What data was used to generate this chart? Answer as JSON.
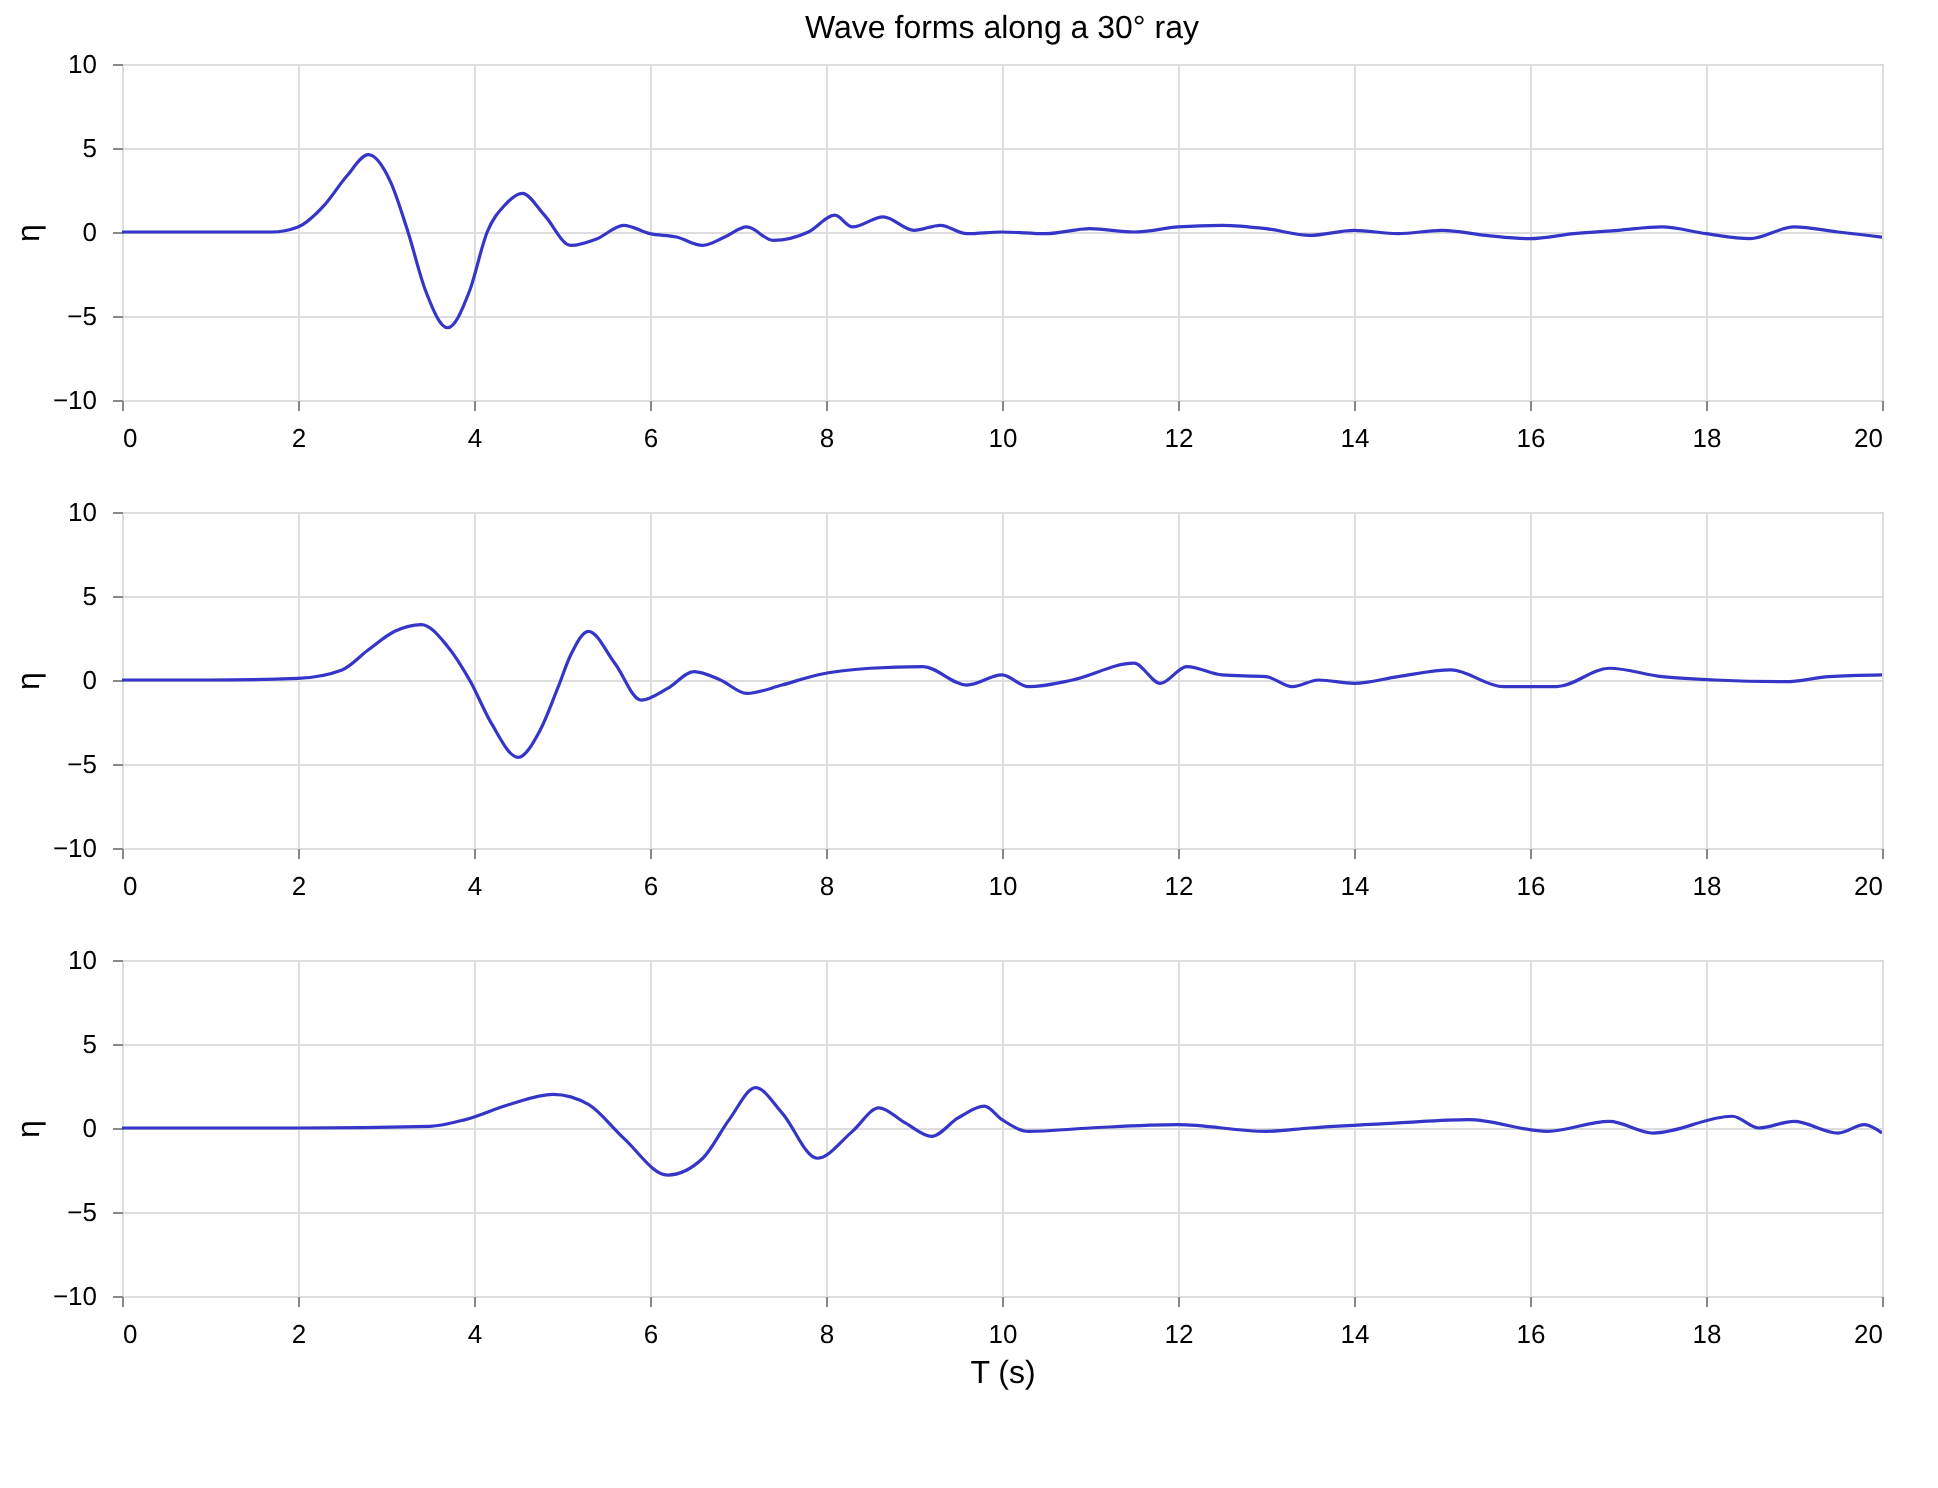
{
  "chart_data": [
    {
      "type": "line",
      "title": "Wave forms along a 30° ray",
      "ylabel": "η",
      "xlim": [
        0,
        20
      ],
      "xticks": [
        0,
        2,
        4,
        6,
        8,
        10,
        12,
        14,
        16,
        18,
        20
      ],
      "ylim": [
        -10,
        10
      ],
      "yticks": [
        -10,
        -5,
        0,
        5,
        10
      ],
      "grid": true,
      "series": [
        {
          "color": "#3535c8",
          "x": [
            0,
            1,
            1.7,
            2.0,
            2.3,
            2.55,
            2.8,
            3.05,
            3.25,
            3.45,
            3.7,
            3.95,
            4.15,
            4.35,
            4.55,
            4.8,
            5.1,
            5.4,
            5.7,
            6.0,
            6.3,
            6.6,
            6.85,
            7.1,
            7.4,
            7.8,
            8.1,
            8.3,
            8.65,
            9.0,
            9.3,
            9.6,
            10,
            10.5,
            11,
            11.5,
            12,
            12.5,
            13,
            13.5,
            14,
            14.5,
            15,
            15.5,
            16,
            16.5,
            17,
            17.5,
            18,
            18.5,
            19,
            19.5,
            20
          ],
          "values": [
            0,
            0,
            0,
            0.3,
            1.6,
            3.3,
            4.6,
            3.0,
            0,
            -3.5,
            -5.7,
            -3.5,
            0,
            1.6,
            2.3,
            1.0,
            -0.8,
            -0.4,
            0.4,
            -0.1,
            -0.3,
            -0.8,
            -0.3,
            0.3,
            -0.5,
            0,
            1.0,
            0.3,
            0.9,
            0.1,
            0.4,
            -0.1,
            0,
            -0.1,
            0.2,
            0,
            0.3,
            0.4,
            0.2,
            -0.2,
            0.1,
            -0.1,
            0.1,
            -0.2,
            -0.4,
            -0.1,
            0.1,
            0.3,
            -0.1,
            -0.4,
            0.3,
            0,
            -0.3
          ]
        }
      ]
    },
    {
      "type": "line",
      "ylabel": "η",
      "xlim": [
        0,
        20
      ],
      "xticks": [
        0,
        2,
        4,
        6,
        8,
        10,
        12,
        14,
        16,
        18,
        20
      ],
      "ylim": [
        -10,
        10
      ],
      "yticks": [
        -10,
        -5,
        0,
        5,
        10
      ],
      "grid": true,
      "series": [
        {
          "color": "#3535c8",
          "x": [
            0,
            1,
            2.0,
            2.5,
            2.8,
            3.1,
            3.4,
            3.7,
            3.95,
            4.2,
            4.5,
            4.75,
            4.95,
            5.1,
            5.3,
            5.6,
            5.9,
            6.2,
            6.5,
            6.8,
            7.1,
            7.5,
            7.9,
            8.5,
            9.1,
            9.6,
            10,
            10.3,
            10.8,
            11.5,
            11.8,
            12.1,
            12.5,
            13,
            13.3,
            13.6,
            14.0,
            14.5,
            15.1,
            15.7,
            16.3,
            16.9,
            17.5,
            18.1,
            18.9,
            19.4,
            20
          ],
          "values": [
            0,
            0,
            0.1,
            0.6,
            1.8,
            2.9,
            3.3,
            2.0,
            0,
            -2.6,
            -4.6,
            -3.0,
            -0.5,
            1.5,
            2.9,
            1.0,
            -1.2,
            -0.5,
            0.5,
            0,
            -0.8,
            -0.3,
            0.3,
            0.7,
            0.8,
            -0.3,
            0.3,
            -0.4,
            0,
            1.0,
            -0.2,
            0.8,
            0.3,
            0.2,
            -0.4,
            0,
            -0.2,
            0.2,
            0.6,
            -0.4,
            -0.4,
            0.7,
            0.2,
            0,
            -0.1,
            0.2,
            0.3
          ]
        }
      ]
    },
    {
      "type": "line",
      "xlabel": "T (s)",
      "ylabel": "η",
      "xlim": [
        0,
        20
      ],
      "xticks": [
        0,
        2,
        4,
        6,
        8,
        10,
        12,
        14,
        16,
        18,
        20
      ],
      "ylim": [
        -10,
        10
      ],
      "yticks": [
        -10,
        -5,
        0,
        5,
        10
      ],
      "grid": true,
      "series": [
        {
          "color": "#3535c8",
          "x": [
            0,
            2,
            3.5,
            3.9,
            4.4,
            4.9,
            5.3,
            5.7,
            6.2,
            6.6,
            6.9,
            7.2,
            7.5,
            7.9,
            8.3,
            8.6,
            8.9,
            9.2,
            9.5,
            9.8,
            10.0,
            10.3,
            11,
            12,
            13,
            13.5,
            14.5,
            15.3,
            16.2,
            16.9,
            17.4,
            18.3,
            18.6,
            19.0,
            19.5,
            19.8,
            20
          ],
          "values": [
            0,
            0,
            0.1,
            0.5,
            1.4,
            2.0,
            1.4,
            -0.6,
            -2.8,
            -1.8,
            0.5,
            2.4,
            0.9,
            -1.8,
            -0.2,
            1.2,
            0.3,
            -0.5,
            0.6,
            1.3,
            0.5,
            -0.2,
            0,
            0.2,
            -0.2,
            0,
            0.3,
            0.5,
            -0.2,
            0.4,
            -0.3,
            0.7,
            0,
            0.4,
            -0.3,
            0.2,
            -0.3
          ]
        }
      ]
    }
  ]
}
